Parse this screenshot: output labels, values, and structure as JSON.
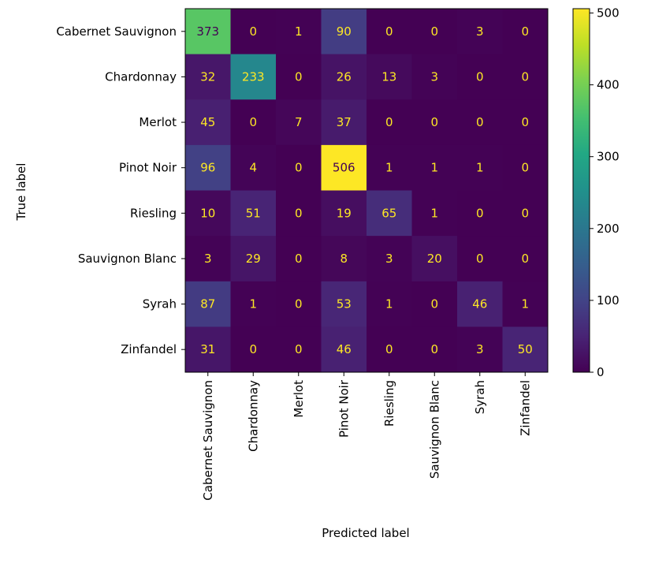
{
  "chart_data": {
    "type": "heatmap",
    "title": "",
    "xlabel": "Predicted label",
    "ylabel": "True label",
    "x_categories": [
      "Cabernet Sauvignon",
      "Chardonnay",
      "Merlot",
      "Pinot Noir",
      "Riesling",
      "Sauvignon Blanc",
      "Syrah",
      "Zinfandel"
    ],
    "y_categories": [
      "Cabernet Sauvignon",
      "Chardonnay",
      "Merlot",
      "Pinot Noir",
      "Riesling",
      "Sauvignon Blanc",
      "Syrah",
      "Zinfandel"
    ],
    "values": [
      [
        373,
        0,
        1,
        90,
        0,
        0,
        3,
        0
      ],
      [
        32,
        233,
        0,
        26,
        13,
        3,
        0,
        0
      ],
      [
        45,
        0,
        7,
        37,
        0,
        0,
        0,
        0
      ],
      [
        96,
        4,
        0,
        506,
        1,
        1,
        1,
        0
      ],
      [
        10,
        51,
        0,
        19,
        65,
        1,
        0,
        0
      ],
      [
        3,
        29,
        0,
        8,
        3,
        20,
        0,
        0
      ],
      [
        87,
        1,
        0,
        53,
        1,
        0,
        46,
        1
      ],
      [
        31,
        0,
        0,
        46,
        0,
        0,
        3,
        50
      ]
    ],
    "colormap": "viridis",
    "value_range": [
      0,
      506
    ],
    "colorbar_ticks": [
      0,
      100,
      200,
      300,
      400,
      500
    ],
    "colorbar": true,
    "grid": false
  }
}
